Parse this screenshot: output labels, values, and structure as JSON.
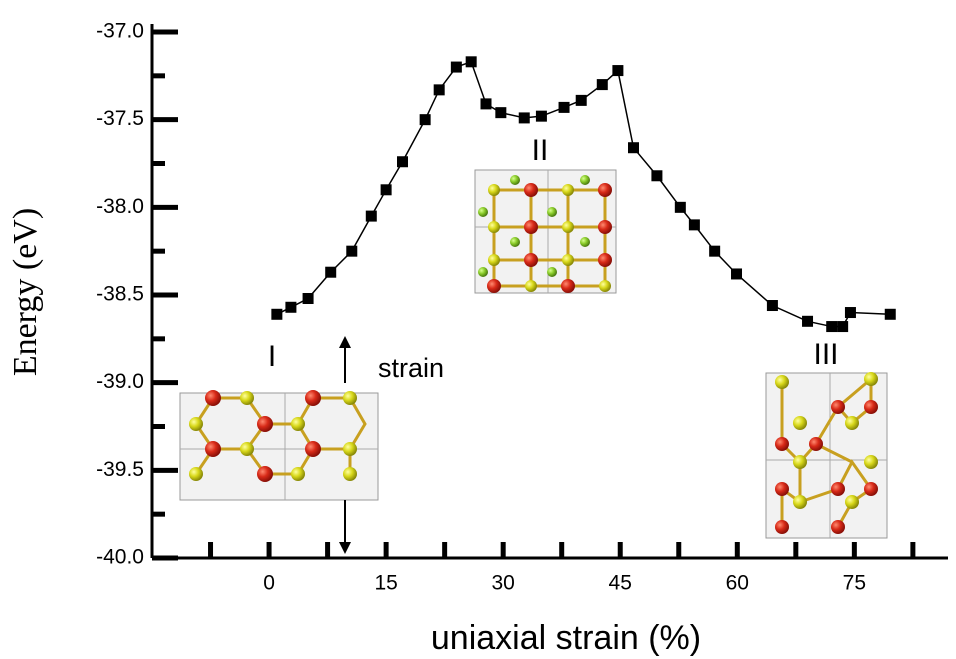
{
  "chart_data": {
    "type": "line",
    "xlabel": "uniaxial strain (%)",
    "ylabel": "Energy (eV)",
    "x": [
      1.0,
      2.8,
      5.0,
      7.9,
      10.6,
      13.1,
      15.0,
      17.1,
      20.0,
      21.8,
      24.0,
      25.9,
      27.8,
      29.7,
      32.7,
      34.9,
      37.8,
      40.0,
      42.7,
      44.7,
      46.7,
      49.7,
      52.7,
      54.5,
      57.1,
      59.9,
      64.5,
      69.0,
      72.1,
      73.5,
      74.5,
      79.6
    ],
    "values": [
      -38.61,
      -38.57,
      -38.52,
      -38.37,
      -38.25,
      -38.05,
      -37.9,
      -37.74,
      -37.5,
      -37.33,
      -37.2,
      -37.17,
      -37.41,
      -37.46,
      -37.49,
      -37.48,
      -37.43,
      -37.39,
      -37.3,
      -37.22,
      -37.66,
      -37.82,
      -38.0,
      -38.1,
      -38.25,
      -38.38,
      -38.56,
      -38.65,
      -38.68,
      -38.68,
      -38.6,
      -38.61
    ],
    "color": "#000000",
    "xlim": [
      -15,
      87
    ],
    "ylim": [
      -40,
      -37
    ],
    "xticks": [
      0,
      15,
      30,
      45,
      60,
      75
    ],
    "xminor_ticks": [
      -7.5,
      7.5,
      22.5,
      37.5,
      52.5,
      67.5,
      82.5
    ],
    "yticks": [
      {
        "value": -37,
        "label": "-37.0"
      },
      {
        "value": -37.5,
        "label": "-37.5"
      },
      {
        "value": -38,
        "label": "-38.0"
      },
      {
        "value": -38.5,
        "label": "-38.5"
      },
      {
        "value": -39,
        "label": "-39.0"
      },
      {
        "value": -39.5,
        "label": "-39.5"
      },
      {
        "value": -40,
        "label": "-40.0"
      }
    ],
    "yminor_ticks": [
      -37.25,
      -37.75,
      -38.25,
      -38.75,
      -39.25,
      -39.75
    ],
    "annotations": [
      "I",
      "II",
      "III",
      "strain"
    ]
  }
}
